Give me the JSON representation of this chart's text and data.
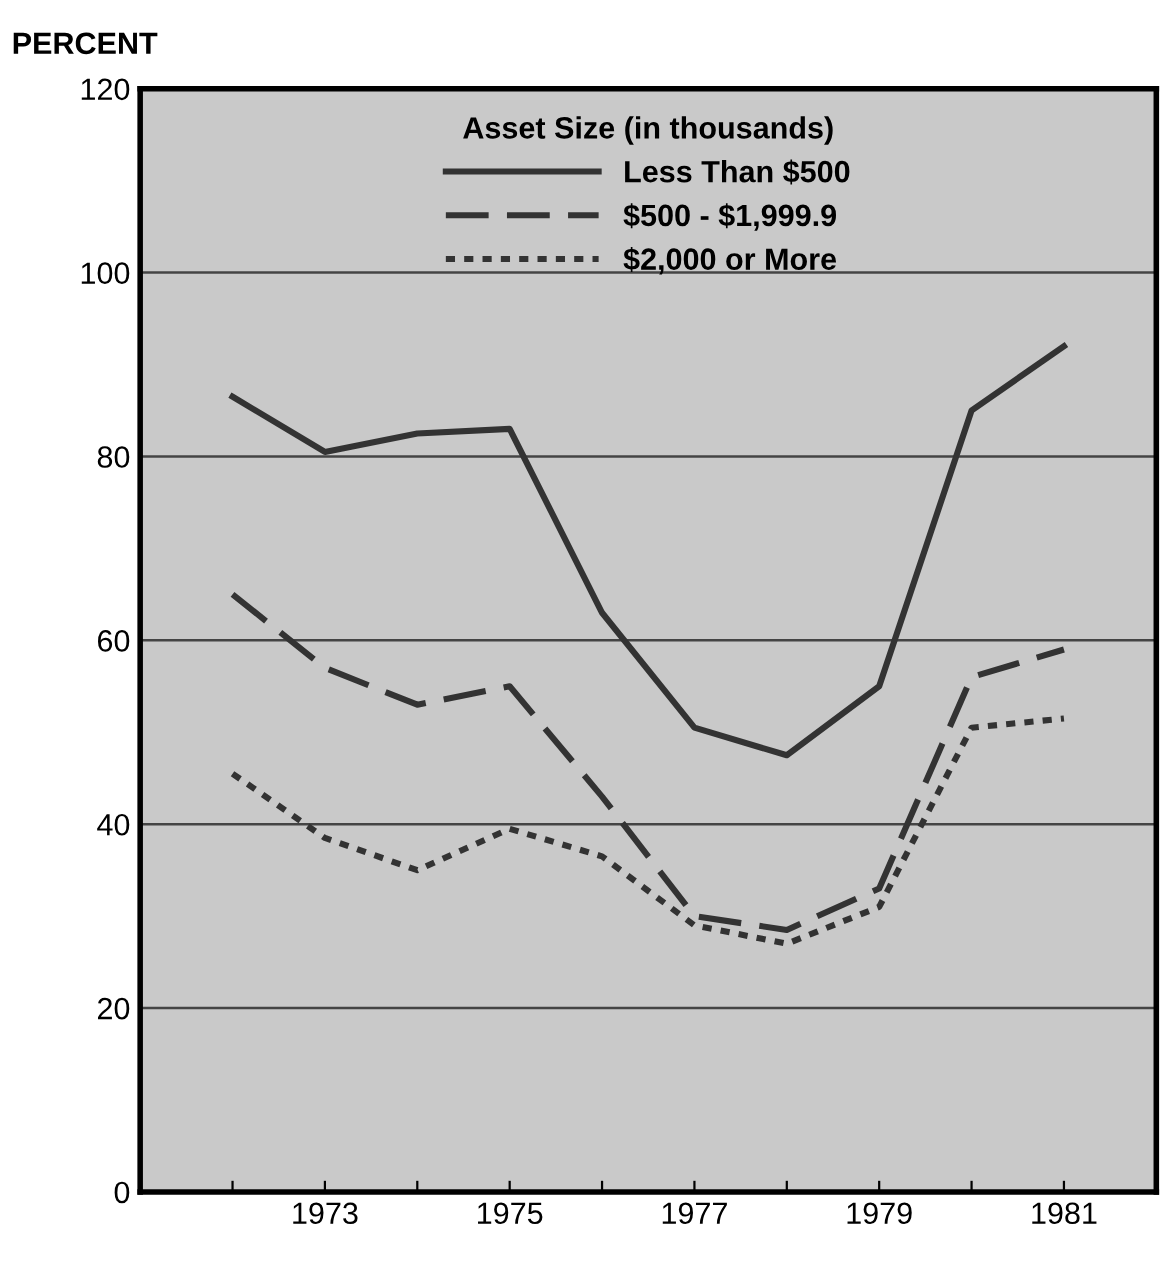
{
  "chart_data": {
    "type": "line",
    "ylabel": "PERCENT",
    "legend_title": "Asset Size (in thousands)",
    "x": [
      1972,
      1973,
      1974,
      1975,
      1976,
      1977,
      1978,
      1979,
      1980,
      1981
    ],
    "series": [
      {
        "name": "Less Than $500",
        "color": "#333333",
        "line_style": "solid",
        "values": [
          86.5,
          80.5,
          82.5,
          83,
          63,
          50.5,
          47.5,
          55,
          85,
          92
        ]
      },
      {
        "name": "$500 - $1,999.9",
        "color": "#333333",
        "line_style": "dashed",
        "values": [
          65,
          57,
          53,
          55,
          43,
          30,
          28.5,
          33,
          56,
          59
        ]
      },
      {
        "name": "$2,000 or More",
        "color": "#333333",
        "line_style": "dotted",
        "values": [
          45.5,
          38.5,
          35,
          39.5,
          36.5,
          29,
          27,
          31,
          50.5,
          51.5
        ]
      }
    ],
    "xlim": [
      1971,
      1982
    ],
    "xticks": [
      {
        "value": 1972,
        "label": null
      },
      1973,
      {
        "value": 1974,
        "label": null
      },
      1975,
      {
        "value": 1976,
        "label": null
      },
      1977,
      {
        "value": 1978,
        "label": null
      },
      1979,
      {
        "value": 1980,
        "label": null
      },
      1981
    ],
    "ylim": [
      0,
      120
    ],
    "yticks": [
      0,
      20,
      40,
      60,
      80,
      100,
      120
    ],
    "grid": "y",
    "legend": "top",
    "marker": "none"
  }
}
